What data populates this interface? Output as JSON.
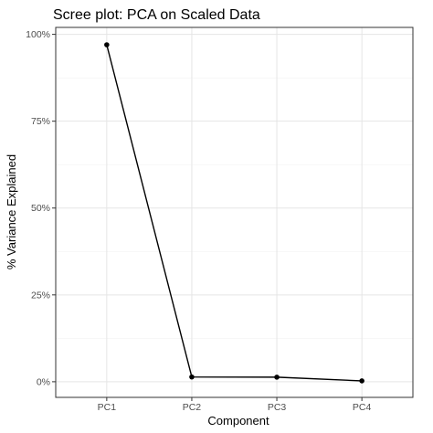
{
  "chart_data": {
    "type": "line",
    "title": "Scree plot: PCA on Scaled Data",
    "xlabel": "Component",
    "ylabel": "% Variance Explained",
    "categories": [
      "PC1",
      "PC2",
      "PC3",
      "PC4"
    ],
    "values": [
      0.97,
      0.0137,
      0.0132,
      0.0025
    ],
    "ylim": [
      -0.045,
      1.02
    ],
    "yticks": [
      0,
      0.25,
      0.5,
      0.75,
      1
    ],
    "ytick_labels": [
      "0%",
      "25%",
      "50%",
      "75%",
      "100%"
    ],
    "grid": true,
    "legend": "none",
    "colors": {
      "line": "#000000",
      "point": "#000000",
      "grid": "#e5e5e5",
      "border": "#333333"
    }
  }
}
